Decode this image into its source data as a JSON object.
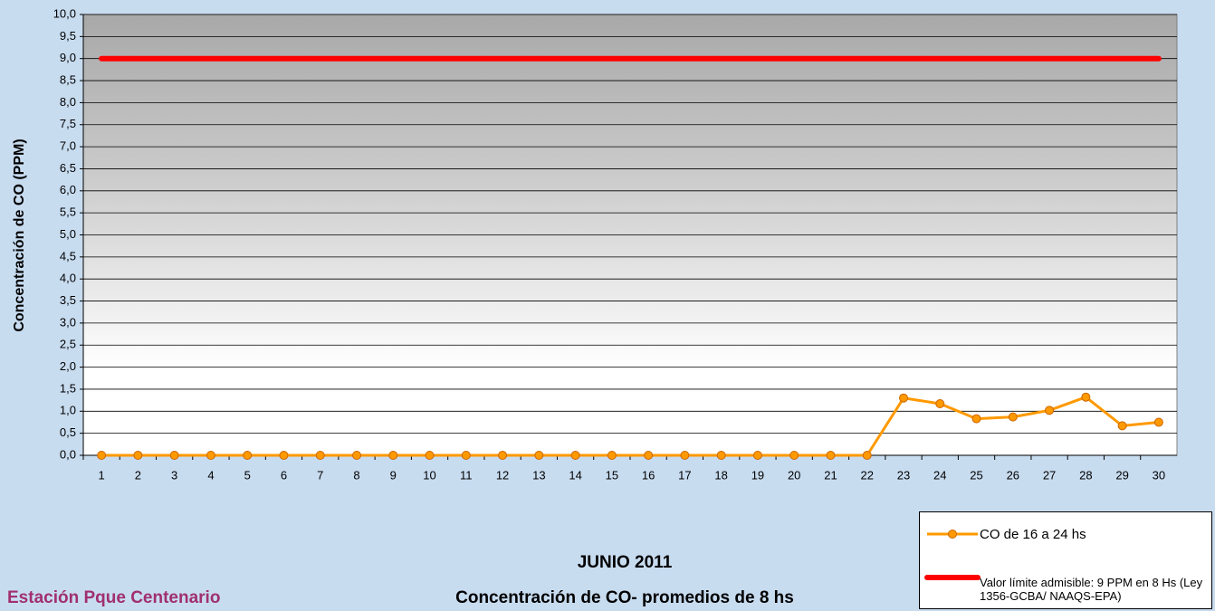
{
  "chart_data": {
    "type": "line",
    "title": "JUNIO 2011",
    "subtitle": "Concentración de CO- promedios de 8 hs",
    "annotation": "Estación Pque Centenario",
    "y_label": "Concentración de CO (PPM)",
    "categories": [
      "1",
      "2",
      "3",
      "4",
      "5",
      "6",
      "7",
      "8",
      "9",
      "10",
      "11",
      "12",
      "13",
      "14",
      "15",
      "16",
      "17",
      "18",
      "19",
      "20",
      "21",
      "22",
      "23",
      "24",
      "25",
      "26",
      "27",
      "28",
      "29",
      "30"
    ],
    "series": [
      {
        "name": "CO de 16 a 24 hs",
        "color": "#ff9900",
        "values": [
          0,
          0,
          0,
          0,
          0,
          0,
          0,
          0,
          0,
          0,
          0,
          0,
          0,
          0,
          0,
          0,
          0,
          0,
          0,
          0,
          0,
          0,
          1.3,
          1.17,
          0.83,
          0.87,
          1.02,
          1.32,
          0.67,
          0.75
        ]
      },
      {
        "name": "Valor límite admisible: 9 PPM en 8 Hs (Ley 1356-GCBA/ NAAQS-EPA)",
        "color": "#ff0000",
        "values": [
          9,
          9,
          9,
          9,
          9,
          9,
          9,
          9,
          9,
          9,
          9,
          9,
          9,
          9,
          9,
          9,
          9,
          9,
          9,
          9,
          9,
          9,
          9,
          9,
          9,
          9,
          9,
          9,
          9,
          9
        ]
      }
    ],
    "ylim": [
      0,
      10
    ],
    "yticks": [
      {
        "value": 0,
        "label": "0,0"
      },
      {
        "value": 0.5,
        "label": "0,5"
      },
      {
        "value": 1,
        "label": "1,0"
      },
      {
        "value": 1.5,
        "label": "1,5"
      },
      {
        "value": 2,
        "label": "2,0"
      },
      {
        "value": 2.5,
        "label": "2,5"
      },
      {
        "value": 3,
        "label": "3,0"
      },
      {
        "value": 3.5,
        "label": "3,5"
      },
      {
        "value": 4,
        "label": "4,0"
      },
      {
        "value": 4.5,
        "label": "4,5"
      },
      {
        "value": 5,
        "label": "5,0"
      },
      {
        "value": 5.5,
        "label": "5,5"
      },
      {
        "value": 6,
        "label": "6,0"
      },
      {
        "value": 6.5,
        "label": "6,5"
      },
      {
        "value": 7,
        "label": "7,0"
      },
      {
        "value": 7.5,
        "label": "7,5"
      },
      {
        "value": 8,
        "label": "8,0"
      },
      {
        "value": 8.5,
        "label": "8,5"
      },
      {
        "value": 9,
        "label": "9,0"
      },
      {
        "value": 9.5,
        "label": "9,5"
      },
      {
        "value": 10,
        "label": "10,0"
      }
    ],
    "grid": true
  }
}
